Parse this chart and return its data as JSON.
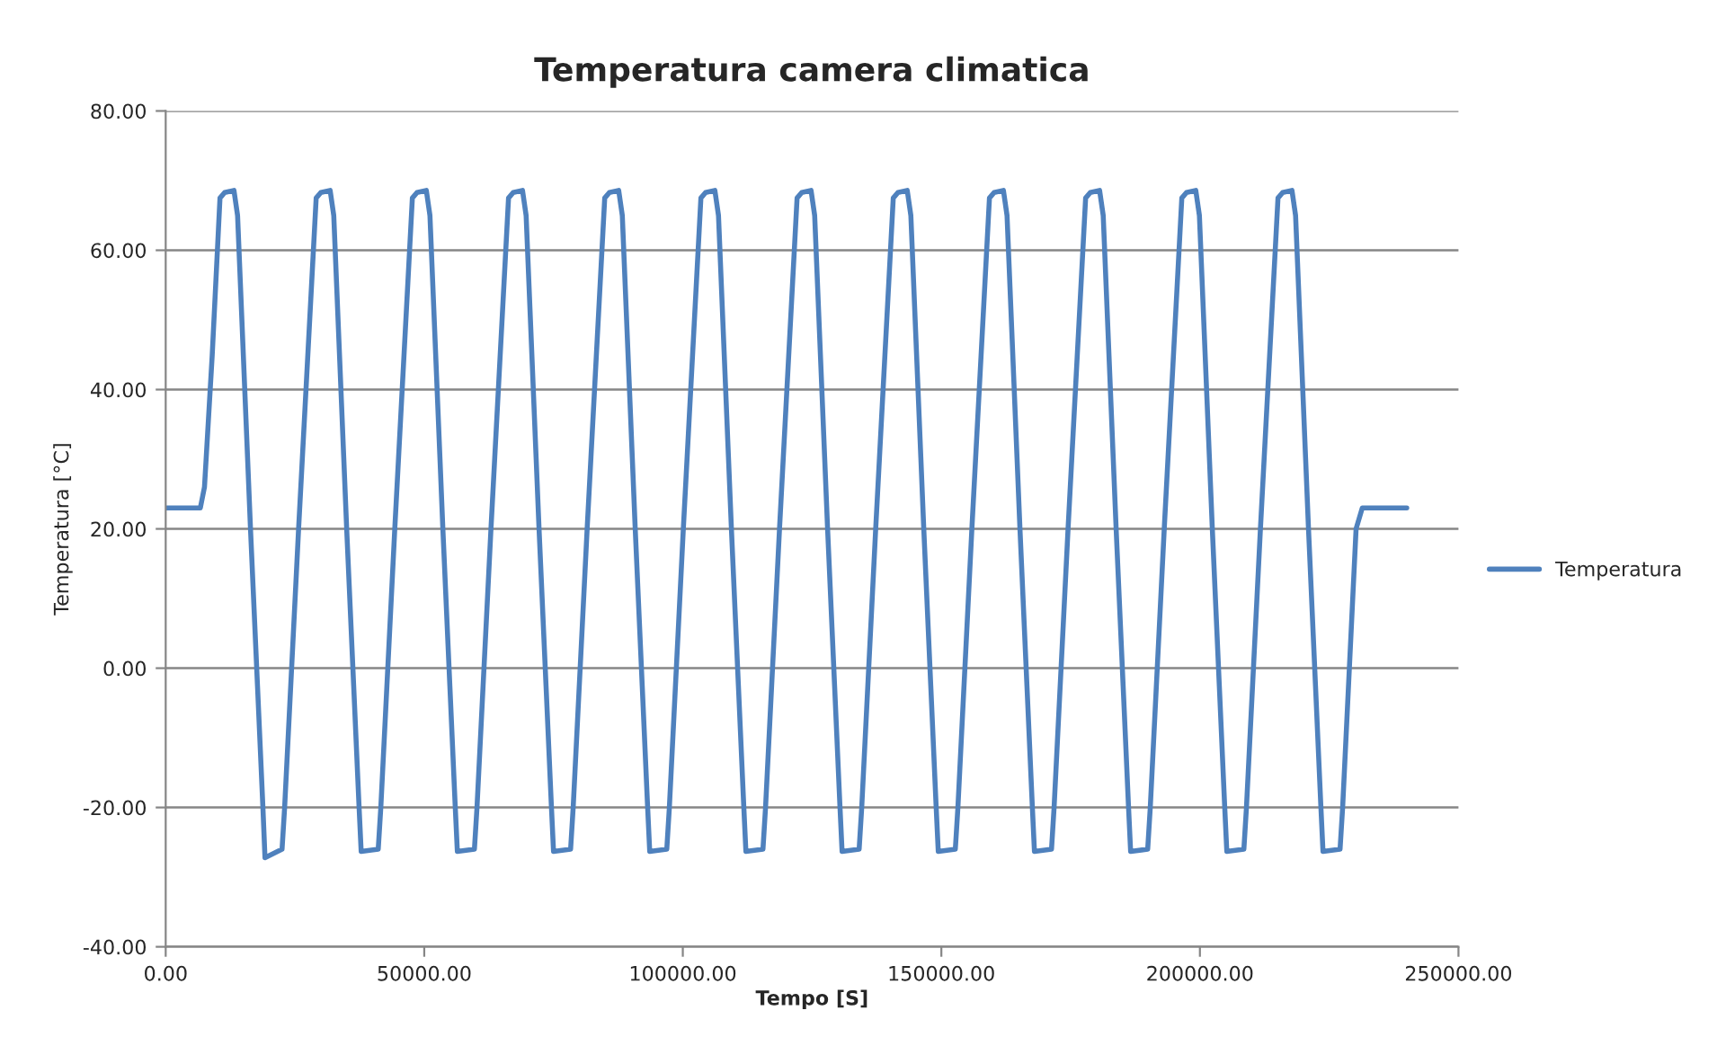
{
  "chart_data": {
    "type": "line",
    "title": "Temperatura camera climatica",
    "xlabel": "Tempo [S]",
    "ylabel": "Temperatura [°C]",
    "x": [
      0,
      6700,
      7500,
      9000,
      10500,
      11400,
      13200,
      13900,
      16400,
      18800,
      19200,
      22500,
      23000,
      25700,
      29100,
      30000,
      31800,
      32500,
      35000,
      37400,
      37800,
      41100,
      41600,
      44300,
      47700,
      48600,
      50400,
      51100,
      53600,
      56000,
      56400,
      59700,
      60200,
      62900,
      66300,
      67200,
      69000,
      69700,
      72200,
      74600,
      75000,
      78300,
      78800,
      81500,
      84900,
      85800,
      87600,
      88300,
      90800,
      93200,
      93600,
      96900,
      97400,
      100100,
      103500,
      104400,
      106200,
      106900,
      109400,
      111800,
      112200,
      115500,
      116000,
      118700,
      122100,
      123000,
      124800,
      125500,
      128000,
      130400,
      130800,
      134100,
      134600,
      137300,
      140700,
      141600,
      143400,
      144100,
      146600,
      149000,
      149400,
      152700,
      153200,
      155900,
      159300,
      160200,
      162000,
      162700,
      165200,
      167600,
      168000,
      171300,
      171800,
      174500,
      177900,
      178800,
      180600,
      181300,
      183800,
      186200,
      186600,
      189900,
      190400,
      193100,
      196500,
      197400,
      199200,
      199900,
      202400,
      204800,
      205200,
      208500,
      209000,
      211700,
      215100,
      216000,
      217800,
      218500,
      221000,
      223400,
      223800,
      227100,
      227600,
      230200,
      230600,
      231400,
      240000
    ],
    "series": [
      {
        "name": "Temperatura",
        "color": "#4f81bd",
        "values": [
          23,
          23,
          26,
          45,
          67.5,
          68.3,
          68.6,
          65,
          20,
          -20,
          -27.2,
          -26,
          -20,
          20,
          67.5,
          68.3,
          68.6,
          65,
          20,
          -20,
          -26.3,
          -26,
          -20,
          20,
          67.5,
          68.3,
          68.6,
          65,
          20,
          -20,
          -26.3,
          -26,
          -20,
          20,
          67.5,
          68.3,
          68.6,
          65,
          20,
          -20,
          -26.3,
          -26,
          -20,
          20,
          67.5,
          68.3,
          68.6,
          65,
          20,
          -20,
          -26.3,
          -26,
          -20,
          20,
          67.5,
          68.3,
          68.6,
          65,
          20,
          -20,
          -26.3,
          -26,
          -20,
          20,
          67.5,
          68.3,
          68.6,
          65,
          20,
          -20,
          -26.3,
          -26,
          -20,
          20,
          67.5,
          68.3,
          68.6,
          65,
          20,
          -20,
          -26.3,
          -26,
          -20,
          20,
          67.5,
          68.3,
          68.6,
          65,
          20,
          -20,
          -26.3,
          -26,
          -20,
          20,
          67.5,
          68.3,
          68.6,
          65,
          20,
          -20,
          -26.3,
          -26,
          -20,
          20,
          67.5,
          68.3,
          68.6,
          65,
          20,
          -20,
          -26.3,
          -26,
          -20,
          20,
          67.5,
          68.3,
          68.6,
          65,
          20,
          -20,
          -26.3,
          -26,
          -20,
          20,
          21,
          23,
          23
        ]
      }
    ],
    "xlim": [
      0,
      250000
    ],
    "xticks": [
      {
        "value": 0,
        "label": "0.00"
      },
      {
        "value": 50000,
        "label": "50000.00"
      },
      {
        "value": 100000,
        "label": "100000.00"
      },
      {
        "value": 150000,
        "label": "150000.00"
      },
      {
        "value": 200000,
        "label": "200000.00"
      },
      {
        "value": 250000,
        "label": "250000.00"
      }
    ],
    "ylim": [
      -40,
      80
    ],
    "yticks": [
      {
        "value": -40,
        "label": "-40.00"
      },
      {
        "value": -20,
        "label": "-20.00"
      },
      {
        "value": 0,
        "label": "0.00"
      },
      {
        "value": 20,
        "label": "20.00"
      },
      {
        "value": 40,
        "label": "40.00"
      },
      {
        "value": 60,
        "label": "60.00"
      },
      {
        "value": 80,
        "label": "80.00"
      }
    ],
    "grid": "y",
    "legend": "right",
    "marker": "none",
    "line_style": "solid"
  }
}
